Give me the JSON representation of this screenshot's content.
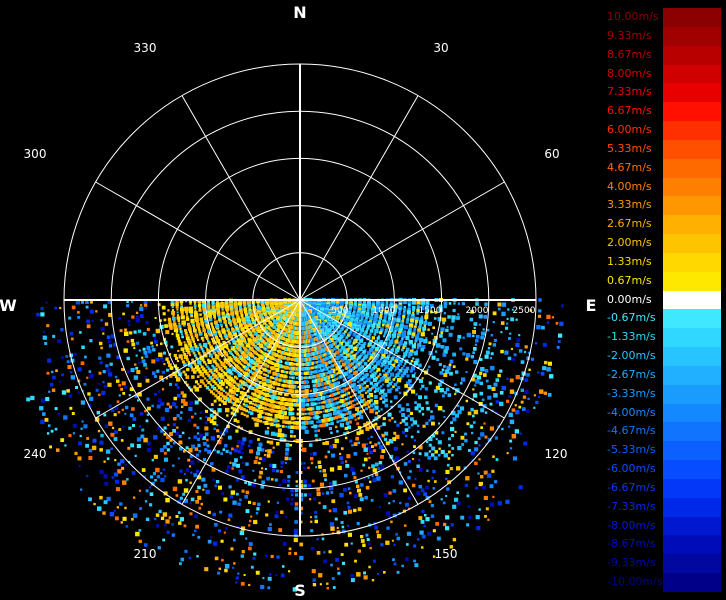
{
  "chart_data": {
    "type": "polar-scatter",
    "title": "",
    "cardinals": [
      "N",
      "E",
      "S",
      "W"
    ],
    "angle_labels": [
      "30",
      "60",
      "120",
      "150",
      "210",
      "240",
      "300",
      "330"
    ],
    "range_labels": [
      "500",
      "1000",
      "1500",
      "2000",
      "2500"
    ],
    "range_max": 2500,
    "grid": true,
    "colorbar": {
      "labels": [
        "10.00m/s",
        "9.33m/s",
        "8.67m/s",
        "8.00m/s",
        "7.33m/s",
        "6.67m/s",
        "6.00m/s",
        "5.33m/s",
        "4.67m/s",
        "4.00m/s",
        "3.33m/s",
        "2.67m/s",
        "2.00m/s",
        "1.33m/s",
        "0.67m/s",
        "0.00m/s",
        "-0.67m/s",
        "-1.33m/s",
        "-2.00m/s",
        "-2.67m/s",
        "-3.33m/s",
        "-4.00m/s",
        "-4.67m/s",
        "-5.33m/s",
        "-6.00m/s",
        "-6.67m/s",
        "-7.33m/s",
        "-8.00m/s",
        "-8.67m/s",
        "-9.33m/s",
        "-10.00m/s"
      ],
      "colors": [
        "#8b0000",
        "#a00000",
        "#b80000",
        "#d00000",
        "#e80000",
        "#ff1000",
        "#ff3000",
        "#ff5000",
        "#ff6a00",
        "#ff8000",
        "#ff9800",
        "#ffb000",
        "#ffc400",
        "#ffd800",
        "#ffe800",
        "#ffffff",
        "#40e8ff",
        "#30d8ff",
        "#28c4ff",
        "#20b0ff",
        "#1a9cff",
        "#1488ff",
        "#1074ff",
        "#0c60ff",
        "#084cff",
        "#0438f8",
        "#0028e8",
        "#0018d0",
        "#000cb8",
        "#0008a0",
        "#000088"
      ],
      "text_colors": [
        "#8b0000",
        "#a00000",
        "#b80000",
        "#d00000",
        "#e80000",
        "#ff1000",
        "#ff3000",
        "#ff5000",
        "#ff6a00",
        "#ff8000",
        "#ff9800",
        "#ffb000",
        "#ffc400",
        "#ffd800",
        "#ffe800",
        "#ffffff",
        "#40e8ff",
        "#30d8ff",
        "#28c4ff",
        "#20b0ff",
        "#1a9cff",
        "#1488ff",
        "#1074ff",
        "#0c60ff",
        "#084cff",
        "#0438f8",
        "#0028e8",
        "#0018d0",
        "#000cb8",
        "#0008a0",
        "#000088"
      ]
    }
  }
}
